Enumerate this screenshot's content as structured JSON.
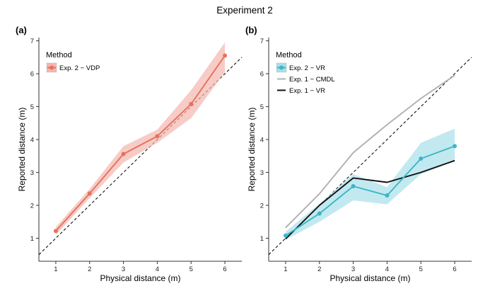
{
  "title": "Experiment 2",
  "chart_data": [
    {
      "type": "line",
      "panel_tag": "(a)",
      "xlabel": "Physical distance (m)",
      "ylabel": "Reported distance (m)",
      "xlim": [
        0.5,
        6.5
      ],
      "ylim": [
        0.3,
        7.1
      ],
      "xticks": [
        1,
        2,
        3,
        4,
        5,
        6
      ],
      "yticks": [
        1,
        2,
        3,
        4,
        5,
        6,
        7
      ],
      "reference_line": "identity (dashed, y = x)",
      "legend_title": "Method",
      "legend_position": "top-left",
      "series": [
        {
          "name": "Exp. 2 − VDP",
          "color": "#E8705F",
          "band_color": "#F4B6AE",
          "markers": true,
          "x": [
            1,
            2,
            3,
            4,
            5,
            6
          ],
          "y": [
            1.22,
            2.36,
            3.56,
            4.1,
            5.08,
            6.55
          ],
          "lower": [
            1.1,
            2.22,
            3.3,
            3.9,
            4.65,
            6.05
          ],
          "upper": [
            1.34,
            2.5,
            3.8,
            4.3,
            5.5,
            6.95
          ]
        }
      ]
    },
    {
      "type": "line",
      "panel_tag": "(b)",
      "xlabel": "Physical distance (m)",
      "ylabel": "Reported distance (m)",
      "xlim": [
        0.5,
        6.5
      ],
      "ylim": [
        0.3,
        7.1
      ],
      "xticks": [
        1,
        2,
        3,
        4,
        5,
        6
      ],
      "yticks": [
        1,
        2,
        3,
        4,
        5,
        6,
        7
      ],
      "reference_line": "identity (dashed, y = x)",
      "legend_title": "Method",
      "legend_position": "top-left",
      "series": [
        {
          "name": "Exp. 2 − VR",
          "color": "#3CB6C8",
          "band_color": "#A8DFE8",
          "markers": true,
          "x": [
            1,
            2,
            3,
            4,
            5,
            6
          ],
          "y": [
            1.08,
            1.75,
            2.58,
            2.3,
            3.42,
            3.8
          ],
          "lower": [
            0.95,
            1.5,
            2.15,
            2.03,
            2.95,
            3.35
          ],
          "upper": [
            1.2,
            2.05,
            2.95,
            2.55,
            3.9,
            4.33
          ]
        },
        {
          "name": "Exp. 1 − CMDL",
          "color": "#B0B0B0",
          "markers": false,
          "x": [
            1,
            2,
            3,
            4,
            5,
            6
          ],
          "y": [
            1.32,
            2.35,
            3.6,
            4.45,
            5.25,
            5.95
          ]
        },
        {
          "name": "Exp. 1 − VR",
          "color": "#111111",
          "markers": false,
          "x": [
            1,
            2,
            3,
            4,
            5,
            6
          ],
          "y": [
            0.98,
            2.0,
            2.83,
            2.7,
            3.0,
            3.36
          ]
        }
      ]
    }
  ]
}
